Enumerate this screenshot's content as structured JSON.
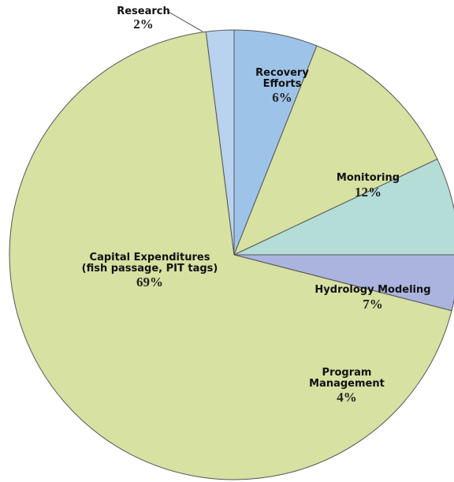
{
  "chart_data": {
    "type": "pie",
    "categories": [
      "Recovery Efforts",
      "Monitoring",
      "Hydrology Modeling",
      "Program Management",
      "Capital Expenditures (fish passage, PIT tags)",
      "Research"
    ],
    "values": [
      6,
      12,
      7,
      4,
      69,
      2
    ],
    "value_labels": [
      "6%",
      "12%",
      "7%",
      "4%",
      "69%",
      "2%"
    ],
    "colors": [
      "#9ec3e8",
      "#d6e1a2",
      "#b3ddd6",
      "#aab4de",
      "#d6e1a2",
      "#b9d2ef"
    ]
  }
}
